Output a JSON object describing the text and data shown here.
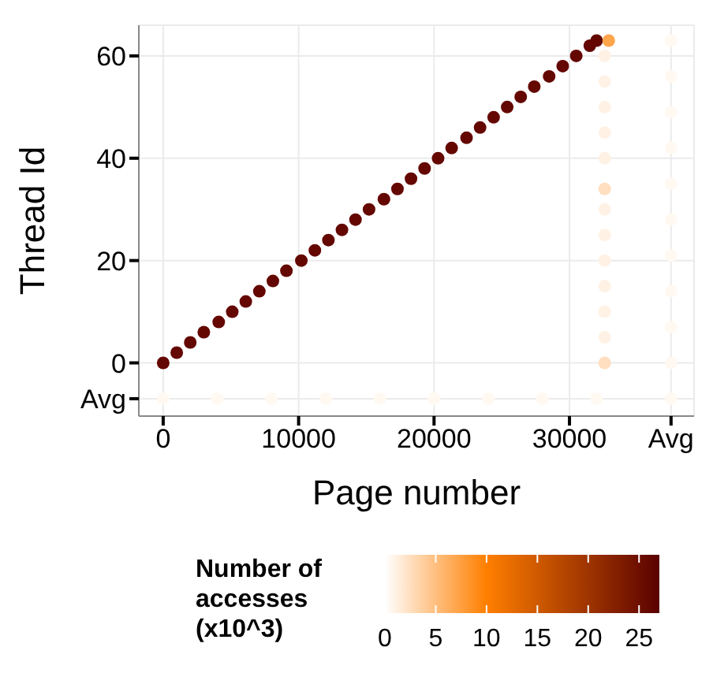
{
  "chart_data": {
    "type": "scatter",
    "xlabel": "Page number",
    "ylabel": "Thread Id",
    "clabel": "Number of accesses (x10^3)",
    "xlim": [
      -1800,
      39200
    ],
    "ylim": [
      -10.4,
      66
    ],
    "xticks": [
      0,
      10000,
      20000,
      30000,
      {
        "value": 37500,
        "label": "Avg"
      }
    ],
    "yticks": [
      {
        "value": -7,
        "label": "Avg"
      },
      0,
      20,
      40,
      60
    ],
    "clim": [
      0,
      27
    ],
    "cticks": [
      0,
      5,
      10,
      15,
      20,
      25
    ],
    "grid": true,
    "legend": false,
    "marker": "circle",
    "series": [
      {
        "x": [
          32600,
          32600,
          32600,
          32600,
          32600,
          32600,
          32600,
          32600,
          32600,
          32600,
          32600
        ],
        "values": [
          5,
          10,
          15,
          20,
          25,
          30,
          40,
          45,
          50,
          55,
          60
        ],
        "cvalues": [
          1,
          1,
          1,
          1,
          1,
          1,
          1,
          1,
          1,
          1,
          1
        ]
      },
      {
        "x": [
          32600,
          32600
        ],
        "values": [
          0,
          34
        ],
        "cvalues": [
          2.5,
          2.5
        ]
      },
      {
        "x": [
          0,
          4000,
          8000,
          12000,
          16000,
          20000,
          24000,
          28000,
          32000,
          37500
        ],
        "values": [
          -7,
          -7,
          -7,
          -7,
          -7,
          -7,
          -7,
          -7,
          -7,
          -7
        ],
        "cvalues": [
          0.5,
          0.5,
          0.5,
          0.5,
          0.5,
          0.5,
          0.5,
          0.5,
          0.5,
          0.5
        ]
      },
      {
        "x": [
          37500,
          37500,
          37500,
          37500,
          37500,
          37500,
          37500,
          37500,
          37500,
          37500
        ],
        "values": [
          0,
          7,
          14,
          21,
          28,
          35,
          42,
          49,
          56,
          63
        ],
        "cvalues": [
          0.5,
          0.5,
          0.5,
          0.5,
          0.5,
          0.5,
          0.5,
          0.5,
          0.5,
          0.5
        ]
      },
      {
        "x": [
          0,
          1000,
          2000,
          3000,
          4100,
          5100,
          6100,
          7100,
          8100,
          9100,
          10200,
          11200,
          12200,
          13200,
          14200,
          15200,
          16300,
          17300,
          18300,
          19300,
          20300,
          21300,
          22400,
          23400,
          24400,
          25400,
          26400,
          27400,
          28500,
          29500,
          30500,
          31500,
          32000
        ],
        "values": [
          0,
          2,
          4,
          6,
          8,
          10,
          12,
          14,
          16,
          18,
          20,
          22,
          24,
          26,
          28,
          30,
          32,
          34,
          36,
          38,
          40,
          42,
          44,
          46,
          48,
          50,
          52,
          54,
          56,
          58,
          60,
          62,
          63
        ],
        "cvalues": [
          26,
          26,
          26,
          26,
          26,
          26,
          26,
          26,
          26,
          26,
          26,
          26,
          26,
          26,
          26,
          26,
          26,
          26,
          26,
          26,
          26,
          26,
          26,
          26,
          26,
          26,
          26,
          26,
          26,
          26,
          26,
          26,
          26
        ]
      },
      {
        "x": [
          32900
        ],
        "values": [
          63
        ],
        "cvalues": [
          7
        ]
      }
    ]
  }
}
